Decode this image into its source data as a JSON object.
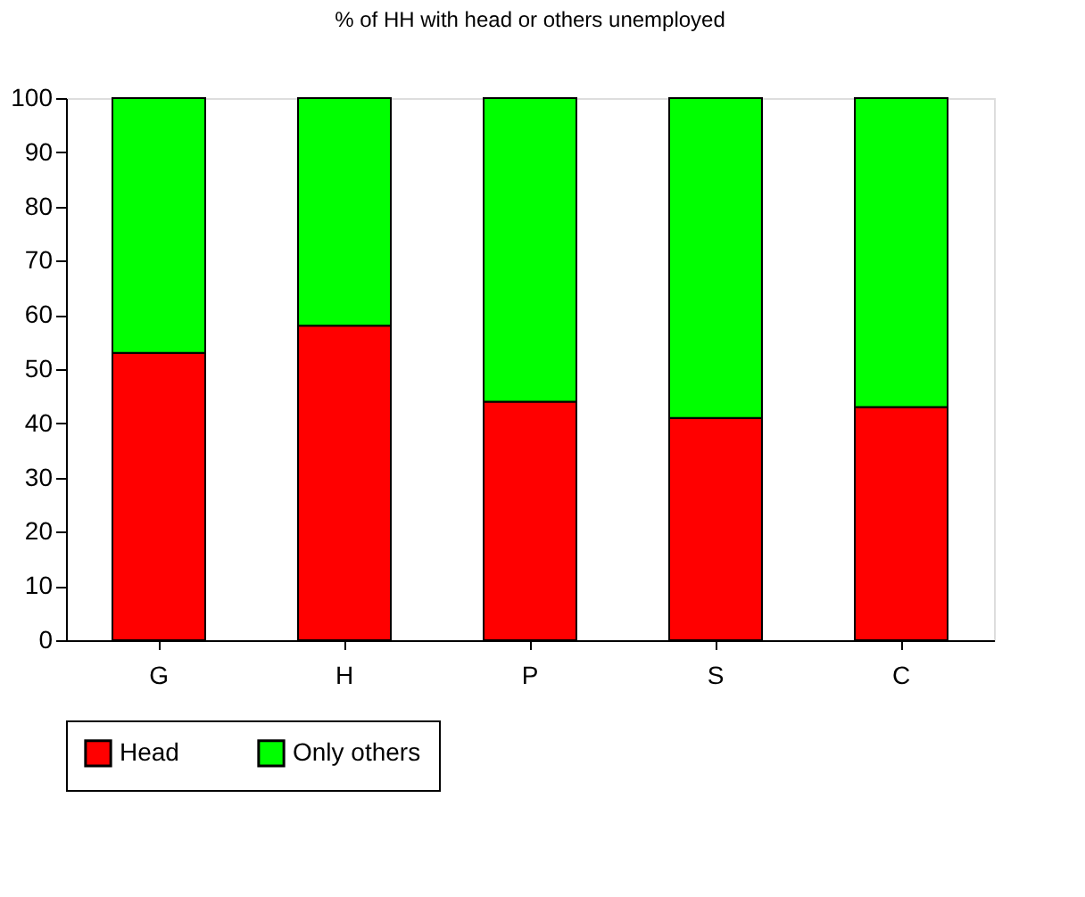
{
  "chart_data": {
    "type": "bar",
    "title": "%  of HH  with  head or others unemployed",
    "categories": [
      "G",
      "H",
      "P",
      "S",
      "C"
    ],
    "stacked": true,
    "series": [
      {
        "name": "Head",
        "color": "#ff0000",
        "values": [
          53,
          58,
          44,
          41,
          43
        ]
      },
      {
        "name": "Only others",
        "color": "#00ff00",
        "values": [
          47,
          42,
          56,
          59,
          57
        ]
      }
    ],
    "ylim": [
      0,
      100
    ],
    "yticks": [
      0,
      10,
      20,
      30,
      40,
      50,
      60,
      70,
      80,
      90,
      100
    ],
    "grid": false,
    "legend": "bottom"
  }
}
